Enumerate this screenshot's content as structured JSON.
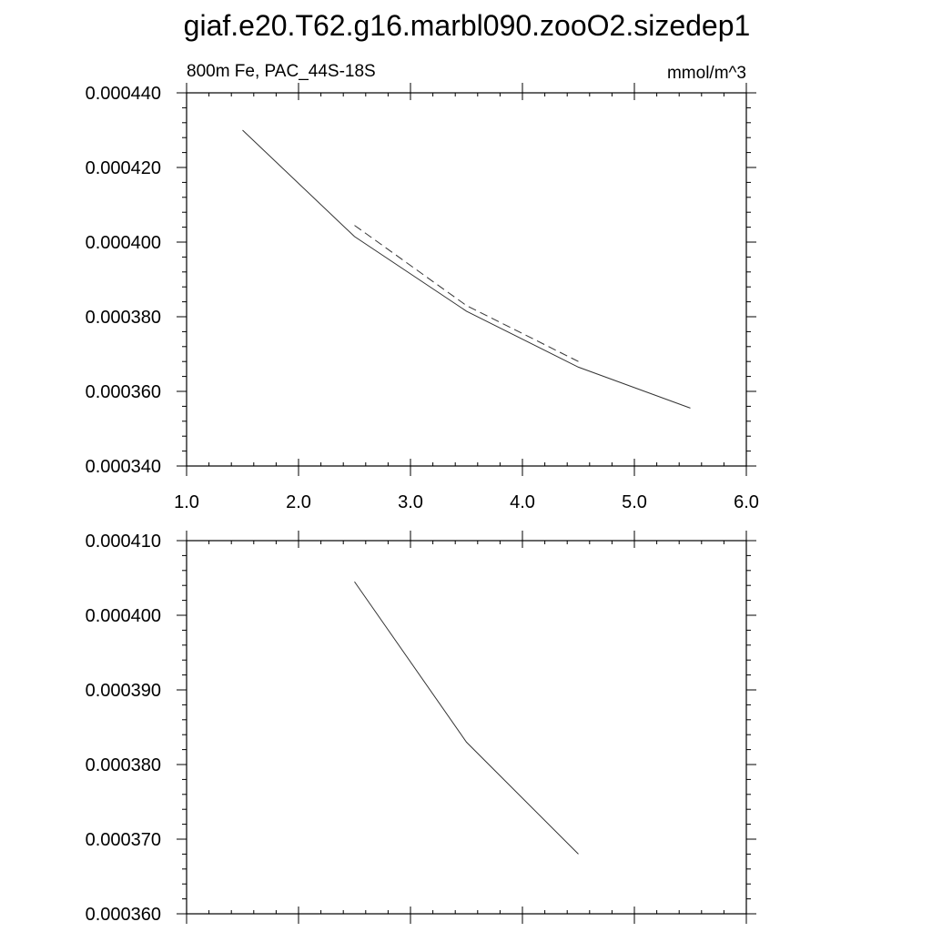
{
  "page": {
    "title": "giaf.e20.T62.g16.marbl090.zooO2.sizedep1"
  },
  "chart_data": [
    {
      "type": "line",
      "left_label": "800m Fe, PAC_44S-18S",
      "right_label": "mmol/m^3",
      "xlim": [
        1.0,
        6.0
      ],
      "ylim": [
        0.00034,
        0.00044
      ],
      "x_ticks": [
        "1.0",
        "2.0",
        "3.0",
        "4.0",
        "5.0",
        "6.0"
      ],
      "y_ticks": [
        "0.000340",
        "0.000360",
        "0.000380",
        "0.000400",
        "0.000420",
        "0.000440"
      ],
      "series": [
        {
          "style": "solid",
          "x": [
            1.5,
            2.5,
            3.5,
            4.5,
            5.5
          ],
          "y": [
            0.00043,
            0.0004015,
            0.0003815,
            0.0003665,
            0.0003555
          ]
        },
        {
          "style": "dashed",
          "x": [
            2.5,
            3.5,
            4.5
          ],
          "y": [
            0.0004045,
            0.000383,
            0.000368
          ]
        }
      ]
    },
    {
      "type": "line",
      "xlim": [
        1.0,
        6.0
      ],
      "ylim": [
        0.00036,
        0.00041
      ],
      "y_ticks": [
        "0.000360",
        "0.000370",
        "0.000380",
        "0.000390",
        "0.000400",
        "0.000410"
      ],
      "series": [
        {
          "style": "solid",
          "x": [
            2.5,
            3.5,
            4.5
          ],
          "y": [
            0.0004045,
            0.000383,
            0.000368
          ]
        }
      ]
    }
  ]
}
